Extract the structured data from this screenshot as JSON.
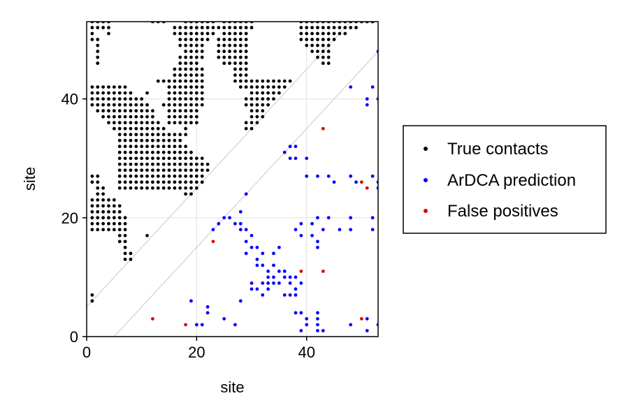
{
  "chart_data": {
    "type": "scatter",
    "xlabel": "site",
    "ylabel": "site",
    "xlim": [
      0,
      53
    ],
    "ylim": [
      0,
      53
    ],
    "xticks": [
      0,
      20,
      40
    ],
    "yticks": [
      0,
      20,
      40
    ],
    "grid": true,
    "legend_position": "right",
    "colors": {
      "true_contacts": "#000000",
      "ardca_prediction": "#0000ff",
      "false_positives": "#e00000",
      "grid": "#e6e6e6",
      "diagonal": "#c8c8c8"
    },
    "diagonal_offsets": [
      5,
      -5
    ],
    "series": [
      {
        "name": "True contacts",
        "key": "true_contacts",
        "row_runs": [
          [
            53,
            [
              [
                1,
                4
              ],
              [
                12,
                14
              ],
              [
                18,
                23
              ],
              [
                25,
                30
              ],
              [
                39,
                52
              ]
            ]
          ],
          [
            52,
            [
              [
                1,
                4
              ],
              [
                16,
                23
              ],
              [
                24,
                30
              ],
              [
                39,
                49
              ]
            ]
          ],
          [
            51,
            [
              [
                1,
                1
              ],
              [
                4,
                4
              ],
              [
                16,
                23
              ],
              [
                25,
                29
              ],
              [
                39,
                47
              ]
            ]
          ],
          [
            50,
            [
              [
                1,
                2
              ],
              [
                17,
                22
              ],
              [
                24,
                29
              ],
              [
                39,
                45
              ]
            ]
          ],
          [
            49,
            [
              [
                2,
                2
              ],
              [
                17,
                21
              ],
              [
                24,
                29
              ],
              [
                40,
                44
              ]
            ]
          ],
          [
            48,
            [
              [
                2,
                2
              ],
              [
                18,
                21
              ],
              [
                24,
                29
              ],
              [
                41,
                44
              ]
            ]
          ],
          [
            47,
            [
              [
                2,
                2
              ],
              [
                17,
                21
              ],
              [
                24,
                29
              ],
              [
                42,
                44
              ]
            ]
          ],
          [
            46,
            [
              [
                2,
                2
              ],
              [
                17,
                20
              ],
              [
                25,
                29
              ],
              [
                43,
                44
              ]
            ]
          ],
          [
            45,
            [
              [
                16,
                21
              ],
              [
                27,
                29
              ]
            ]
          ],
          [
            44,
            [
              [
                16,
                21
              ],
              [
                27,
                29
              ]
            ]
          ],
          [
            43,
            [
              [
                13,
                21
              ],
              [
                27,
                37
              ]
            ]
          ],
          [
            42,
            [
              [
                1,
                7
              ],
              [
                15,
                21
              ],
              [
                28,
                36
              ]
            ]
          ],
          [
            41,
            [
              [
                1,
                8
              ],
              [
                11,
                11
              ],
              [
                15,
                21
              ],
              [
                30,
                35
              ]
            ]
          ],
          [
            40,
            [
              [
                1,
                10
              ],
              [
                15,
                21
              ],
              [
                29,
                34
              ]
            ]
          ],
          [
            39,
            [
              [
                1,
                11
              ],
              [
                14,
                21
              ],
              [
                29,
                33
              ]
            ]
          ],
          [
            38,
            [
              [
                2,
                12
              ],
              [
                15,
                20
              ],
              [
                30,
                32
              ]
            ]
          ],
          [
            37,
            [
              [
                3,
                12
              ],
              [
                15,
                20
              ],
              [
                30,
                32
              ]
            ]
          ],
          [
            36,
            [
              [
                4,
                13
              ],
              [
                15,
                20
              ],
              [
                29,
                31
              ]
            ]
          ],
          [
            35,
            [
              [
                5,
                14
              ],
              [
                18,
                18
              ],
              [
                29,
                30
              ]
            ]
          ],
          [
            34,
            [
              [
                6,
                16
              ],
              [
                17,
                18
              ]
            ]
          ],
          [
            33,
            [
              [
                6,
                17
              ]
            ]
          ],
          [
            32,
            [
              [
                6,
                18
              ]
            ]
          ],
          [
            31,
            [
              [
                6,
                19
              ]
            ]
          ],
          [
            30,
            [
              [
                6,
                21
              ]
            ]
          ],
          [
            29,
            [
              [
                6,
                22
              ]
            ]
          ],
          [
            28,
            [
              [
                6,
                22
              ]
            ]
          ],
          [
            27,
            [
              [
                1,
                2
              ],
              [
                6,
                21
              ]
            ]
          ],
          [
            26,
            [
              [
                1,
                2
              ],
              [
                6,
                21
              ]
            ]
          ],
          [
            25,
            [
              [
                2,
                3
              ],
              [
                6,
                20
              ]
            ]
          ],
          [
            24,
            [
              [
                2,
                3
              ],
              [
                18,
                19
              ]
            ]
          ],
          [
            23,
            [
              [
                1,
                5
              ]
            ]
          ],
          [
            22,
            [
              [
                1,
                6
              ]
            ]
          ],
          [
            21,
            [
              [
                1,
                6
              ]
            ]
          ],
          [
            20,
            [
              [
                1,
                7
              ]
            ]
          ],
          [
            19,
            [
              [
                1,
                7
              ]
            ]
          ],
          [
            18,
            [
              [
                1,
                7
              ]
            ]
          ],
          [
            17,
            [
              [
                6,
                7
              ],
              [
                11,
                11
              ]
            ]
          ],
          [
            16,
            [
              [
                6,
                7
              ]
            ]
          ],
          [
            15,
            [
              [
                7,
                7
              ]
            ]
          ],
          [
            14,
            [
              [
                7,
                8
              ]
            ]
          ],
          [
            13,
            [
              [
                7,
                8
              ]
            ]
          ],
          [
            7,
            [
              [
                1,
                1
              ]
            ]
          ],
          [
            6,
            [
              [
                1,
                1
              ]
            ]
          ]
        ]
      },
      {
        "name": "ArDCA prediction",
        "key": "ardca_prediction",
        "points": [
          [
            53,
            48
          ],
          [
            48,
            42
          ],
          [
            52,
            42
          ],
          [
            51,
            39
          ],
          [
            51,
            40
          ],
          [
            53,
            40
          ],
          [
            37,
            32
          ],
          [
            38,
            32
          ],
          [
            36,
            31
          ],
          [
            37,
            30
          ],
          [
            38,
            30
          ],
          [
            40,
            30
          ],
          [
            40,
            27
          ],
          [
            42,
            27
          ],
          [
            44,
            27
          ],
          [
            45,
            26
          ],
          [
            48,
            27
          ],
          [
            49,
            26
          ],
          [
            52,
            27
          ],
          [
            53,
            25
          ],
          [
            53,
            26
          ],
          [
            29,
            24
          ],
          [
            25,
            20
          ],
          [
            26,
            20
          ],
          [
            28,
            21
          ],
          [
            24,
            19
          ],
          [
            27,
            19
          ],
          [
            28,
            19
          ],
          [
            23,
            18
          ],
          [
            28,
            18
          ],
          [
            29,
            18
          ],
          [
            39,
            19
          ],
          [
            42,
            20
          ],
          [
            44,
            20
          ],
          [
            41,
            19
          ],
          [
            43,
            18
          ],
          [
            38,
            18
          ],
          [
            39,
            17
          ],
          [
            41,
            17
          ],
          [
            46,
            18
          ],
          [
            48,
            18
          ],
          [
            48,
            20
          ],
          [
            52,
            20
          ],
          [
            52,
            18
          ],
          [
            42,
            16
          ],
          [
            42,
            15
          ],
          [
            30,
            17
          ],
          [
            29,
            16
          ],
          [
            29,
            14
          ],
          [
            30,
            15
          ],
          [
            31,
            15
          ],
          [
            31,
            13
          ],
          [
            31,
            12
          ],
          [
            32,
            14
          ],
          [
            32,
            12
          ],
          [
            33,
            11
          ],
          [
            33,
            10
          ],
          [
            34,
            12
          ],
          [
            34,
            14
          ],
          [
            35,
            15
          ],
          [
            33,
            8
          ],
          [
            33,
            9
          ],
          [
            34,
            9
          ],
          [
            34,
            10
          ],
          [
            35,
            9
          ],
          [
            35,
            11
          ],
          [
            36,
            11
          ],
          [
            36,
            10
          ],
          [
            37,
            9
          ],
          [
            37,
            10
          ],
          [
            38,
            8
          ],
          [
            38,
            10
          ],
          [
            38,
            7
          ],
          [
            37,
            7
          ],
          [
            36,
            7
          ],
          [
            39,
            9
          ],
          [
            30,
            9
          ],
          [
            30,
            8
          ],
          [
            31,
            8
          ],
          [
            32,
            7
          ],
          [
            32,
            9
          ],
          [
            28,
            6
          ],
          [
            19,
            6
          ],
          [
            22,
            5
          ],
          [
            22,
            4
          ],
          [
            20,
            2
          ],
          [
            21,
            2
          ],
          [
            25,
            3
          ],
          [
            27,
            2
          ],
          [
            39,
            4
          ],
          [
            38,
            4
          ],
          [
            40,
            3
          ],
          [
            42,
            3
          ],
          [
            42,
            4
          ],
          [
            40,
            2
          ],
          [
            42,
            2
          ],
          [
            43,
            1
          ],
          [
            42,
            1
          ],
          [
            39,
            1
          ],
          [
            48,
            2
          ],
          [
            51,
            3
          ],
          [
            51,
            1
          ],
          [
            53,
            2
          ]
        ]
      },
      {
        "name": "False positives",
        "key": "false_positives",
        "points": [
          [
            43,
            35
          ],
          [
            50,
            26
          ],
          [
            51,
            25
          ],
          [
            23,
            16
          ],
          [
            39,
            11
          ],
          [
            43,
            11
          ],
          [
            12,
            3
          ],
          [
            18,
            2
          ],
          [
            50,
            3
          ]
        ]
      }
    ]
  }
}
